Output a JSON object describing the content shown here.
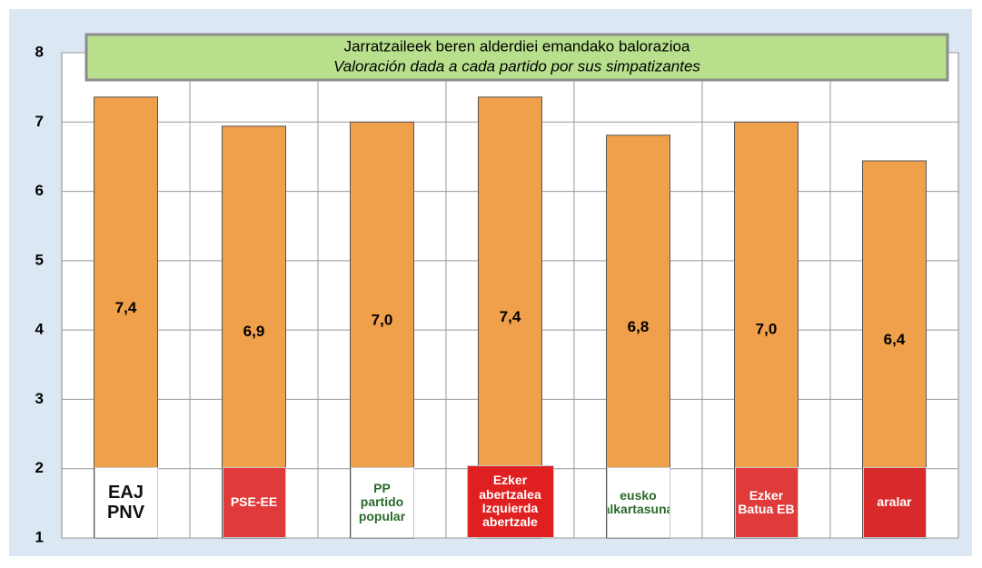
{
  "chart_data": {
    "type": "bar",
    "title": "Jarratzaileek beren alderdiei emandako balorazioa",
    "subtitle": "Valoración dada a cada partido por sus simpatizantes",
    "categories": [
      "EAJ PNV",
      "PSE-EE",
      "PP partido popular",
      "Ezker abertzalea Izquierda abertzale",
      "eusko alkartasuna",
      "Ezker Batua EB",
      "aralar"
    ],
    "category_colors": [
      "#ffffff",
      "#e03a3a",
      "#ffffff",
      "#e02020",
      "#ffffff",
      "#e03a3a",
      "#d82a2a"
    ],
    "values": [
      7.36,
      6.94,
      7.0,
      7.36,
      6.81,
      7.0,
      6.44
    ],
    "value_labels": [
      "7,4",
      "6,9",
      "7,0",
      "7,4",
      "6,8",
      "7,0",
      "6,4"
    ],
    "color": "#f0a04b",
    "ylim": [
      1,
      8
    ],
    "yticks": [
      1,
      2,
      3,
      4,
      5,
      6,
      7,
      8
    ],
    "grid": true
  }
}
